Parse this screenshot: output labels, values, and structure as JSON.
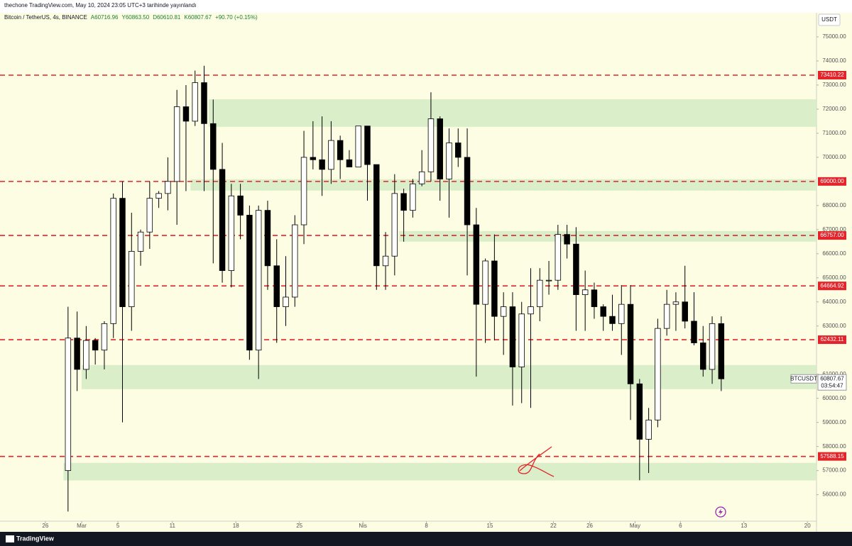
{
  "header": {
    "published": "thechone TradingView.com, May 10, 2024 23:05 UTC+3 tarihinde yayınlandı",
    "legend": [
      "Bitcoin / TetherUS, 4s, BINANCE",
      "A60716.96",
      "Y60863.50",
      "D60610.81",
      "K60807.67",
      "+90.70 (+0.15%)"
    ],
    "currency": "USDT",
    "brand": "TradingView"
  },
  "chart_data": {
    "type": "candlestick",
    "x": [
      "2024-02-28",
      "2024-02-29",
      "2024-03-01",
      "2024-03-02",
      "2024-03-03",
      "2024-03-04",
      "2024-03-05",
      "2024-03-06",
      "2024-03-07",
      "2024-03-08",
      "2024-03-09",
      "2024-03-10",
      "2024-03-11",
      "2024-03-12",
      "2024-03-13",
      "2024-03-14",
      "2024-03-15",
      "2024-03-16",
      "2024-03-17",
      "2024-03-18",
      "2024-03-19",
      "2024-03-20",
      "2024-03-21",
      "2024-03-22",
      "2024-03-23",
      "2024-03-24",
      "2024-03-25",
      "2024-03-26",
      "2024-03-27",
      "2024-03-28",
      "2024-03-29",
      "2024-03-30",
      "2024-03-31",
      "2024-04-01",
      "2024-04-02",
      "2024-04-03",
      "2024-04-04",
      "2024-04-05",
      "2024-04-06",
      "2024-04-07",
      "2024-04-08",
      "2024-04-09",
      "2024-04-10",
      "2024-04-11",
      "2024-04-12",
      "2024-04-13",
      "2024-04-14",
      "2024-04-15",
      "2024-04-16",
      "2024-04-17",
      "2024-04-18",
      "2024-04-19",
      "2024-04-20",
      "2024-04-21",
      "2024-04-22",
      "2024-04-23",
      "2024-04-24",
      "2024-04-25",
      "2024-04-26",
      "2024-04-27",
      "2024-04-28",
      "2024-04-29",
      "2024-04-30",
      "2024-05-01",
      "2024-05-02",
      "2024-05-03",
      "2024-05-04",
      "2024-05-05",
      "2024-05-06",
      "2024-05-07",
      "2024-05-08",
      "2024-05-09",
      "2024-05-10"
    ],
    "open": [
      57000,
      62500,
      61200,
      62400,
      62000,
      63100,
      68300,
      63800,
      66100,
      66900,
      68300,
      68500,
      69000,
      72100,
      71500,
      73100,
      71400,
      69500,
      65300,
      68400,
      67600,
      62000,
      67800,
      65500,
      63800,
      64200,
      67200,
      70000,
      69900,
      69500,
      70700,
      69900,
      69600,
      71300,
      69700,
      65500,
      65900,
      68500,
      67800,
      68900,
      69400,
      71600,
      69100,
      70600,
      70000,
      67200,
      63900,
      65700,
      63400,
      63800,
      61300,
      63500,
      63800,
      64900,
      64900,
      66800,
      66400,
      64300,
      64500,
      63800,
      63400,
      63100,
      63900,
      60600,
      58300,
      59100,
      62900,
      63900,
      64000,
      63200,
      62300,
      61200,
      63100
    ],
    "high": [
      63800,
      63600,
      63000,
      62500,
      63200,
      68500,
      69000,
      67700,
      67000,
      69000,
      68600,
      70000,
      72800,
      73000,
      73600,
      73800,
      72400,
      70600,
      68900,
      68900,
      68000,
      68000,
      68200,
      66600,
      65900,
      67600,
      71100,
      71500,
      71700,
      71500,
      70900,
      70300,
      71300,
      71300,
      69700,
      66900,
      69300,
      68700,
      69100,
      70300,
      72700,
      71700,
      71200,
      71200,
      71200,
      67900,
      65800,
      66800,
      64400,
      64400,
      64000,
      65400,
      65400,
      65700,
      67200,
      67200,
      67100,
      65300,
      64800,
      63900,
      64300,
      64700,
      64700,
      60800,
      59600,
      63300,
      64500,
      64400,
      65500,
      64400,
      63000,
      63400,
      63400
    ],
    "low": [
      55300,
      60300,
      60800,
      61400,
      61200,
      62500,
      59000,
      62800,
      65500,
      66200,
      67900,
      67800,
      67200,
      68600,
      71300,
      68600,
      65600,
      64800,
      64600,
      66600,
      61600,
      60800,
      64500,
      62300,
      63000,
      63800,
      66400,
      69500,
      68400,
      68900,
      69100,
      69600,
      69600,
      68200,
      64500,
      64500,
      65100,
      66500,
      67500,
      68800,
      69000,
      68200,
      67500,
      69600,
      65100,
      60900,
      62300,
      62400,
      61800,
      59700,
      59800,
      59600,
      63200,
      64300,
      64500,
      65800,
      62800,
      62800,
      63300,
      62800,
      62800,
      61800,
      59100,
      56600,
      56900,
      58800,
      62600,
      62800,
      62900,
      62200,
      60900,
      60600,
      60300
    ],
    "close": [
      62500,
      61200,
      62400,
      62000,
      63100,
      68300,
      63800,
      66100,
      66900,
      68300,
      68500,
      69000,
      72100,
      71500,
      73100,
      71400,
      69500,
      65300,
      68400,
      67600,
      62000,
      67800,
      65500,
      63800,
      64200,
      67200,
      70000,
      69900,
      69500,
      70700,
      69900,
      69600,
      71300,
      69700,
      65500,
      65900,
      68500,
      67800,
      68900,
      69400,
      71600,
      69100,
      70600,
      70000,
      67200,
      63900,
      65700,
      63400,
      63800,
      61300,
      63500,
      63800,
      64900,
      64900,
      66800,
      66400,
      64300,
      64500,
      63800,
      63400,
      63100,
      63900,
      60600,
      58300,
      59100,
      62900,
      63900,
      64000,
      63200,
      62300,
      61200,
      63100,
      60807.67
    ],
    "up_color": "#ffffff",
    "down_color": "#000000",
    "wick_color": "#000000",
    "xlim": [
      "2024-02-21",
      "2024-05-21"
    ],
    "xticks": [
      {
        "value": "2024-02-26",
        "label": "26"
      },
      {
        "value": "2024-03-01",
        "label": "Mar"
      },
      {
        "value": "2024-03-05",
        "label": "5"
      },
      {
        "value": "2024-03-11",
        "label": "11"
      },
      {
        "value": "2024-03-18",
        "label": "18"
      },
      {
        "value": "2024-03-25",
        "label": "25"
      },
      {
        "value": "2024-04-01",
        "label": "Nis"
      },
      {
        "value": "2024-04-08",
        "label": "8"
      },
      {
        "value": "2024-04-15",
        "label": "15"
      },
      {
        "value": "2024-04-22",
        "label": "22"
      },
      {
        "value": "2024-04-26",
        "label": "26"
      },
      {
        "value": "2024-05-01",
        "label": "May"
      },
      {
        "value": "2024-05-06",
        "label": "6"
      },
      {
        "value": "2024-05-13",
        "label": "13"
      },
      {
        "value": "2024-05-20",
        "label": "20"
      }
    ],
    "ylim": [
      54900,
      76000
    ],
    "yticks": [
      {
        "value": 56000,
        "label": "56000.00"
      },
      {
        "value": 57000,
        "label": "57000.00"
      },
      {
        "value": 58000,
        "label": "58000.00"
      },
      {
        "value": 59000,
        "label": "59000.00"
      },
      {
        "value": 60000,
        "label": "60000.00"
      },
      {
        "value": 61000,
        "label": "61000.00"
      },
      {
        "value": 63000,
        "label": "63000.00"
      },
      {
        "value": 64000,
        "label": "64000.00"
      },
      {
        "value": 65000,
        "label": "65000.00"
      },
      {
        "value": 66000,
        "label": "66000.00"
      },
      {
        "value": 67000,
        "label": "67000.00"
      },
      {
        "value": 68000,
        "label": "68000.00"
      },
      {
        "value": 70000,
        "label": "70000.00"
      },
      {
        "value": 71000,
        "label": "71000.00"
      },
      {
        "value": 72000,
        "label": "72000.00"
      },
      {
        "value": 73000,
        "label": "73000.00"
      },
      {
        "value": 74000,
        "label": "74000.00"
      },
      {
        "value": 75000,
        "label": "75000.00"
      }
    ],
    "hline_color": "#e3242b",
    "hlines": [
      {
        "value": 73410.22,
        "label": "73410.22"
      },
      {
        "value": 69000,
        "label": "69000.00"
      },
      {
        "value": 66757,
        "label": "66757.00"
      },
      {
        "value": 64664.92,
        "label": "64664.92"
      },
      {
        "value": 62432.11,
        "label": "62432.11"
      },
      {
        "value": 57588.15,
        "label": "57588.15"
      }
    ],
    "zone_color": "#d3ecc4",
    "zones": [
      {
        "start": "2024-03-15",
        "low": 71265,
        "high": 72410
      },
      {
        "start": "2024-03-13",
        "low": 68620,
        "high": 69090
      },
      {
        "start": "2024-04-05",
        "low": 66500,
        "high": 66940
      },
      {
        "start": "2024-03-01",
        "low": 60380,
        "high": 61380
      },
      {
        "start": "2024-02-28",
        "low": 56590,
        "high": 57320
      }
    ],
    "last": {
      "symbol": "BTCUSDT",
      "price": 60807.67,
      "countdown": "03:54:47"
    }
  }
}
